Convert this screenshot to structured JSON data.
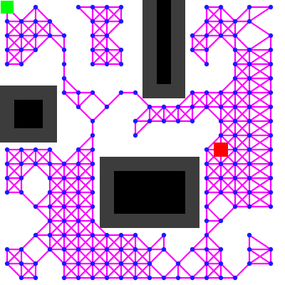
{
  "scene": "roadmap-planner-grid",
  "colors": {
    "background": "#ffffff",
    "obstacle_outer": "#3c3c3c",
    "obstacle_inner": "#000000",
    "edge": "#ff00ff",
    "node": "#1a1aff",
    "start": "#00ff00",
    "goal": "#ff0000"
  },
  "markers": {
    "start": {
      "label": "start",
      "icon": "green-square"
    },
    "goal": {
      "label": "goal",
      "icon": "red-square"
    }
  }
}
